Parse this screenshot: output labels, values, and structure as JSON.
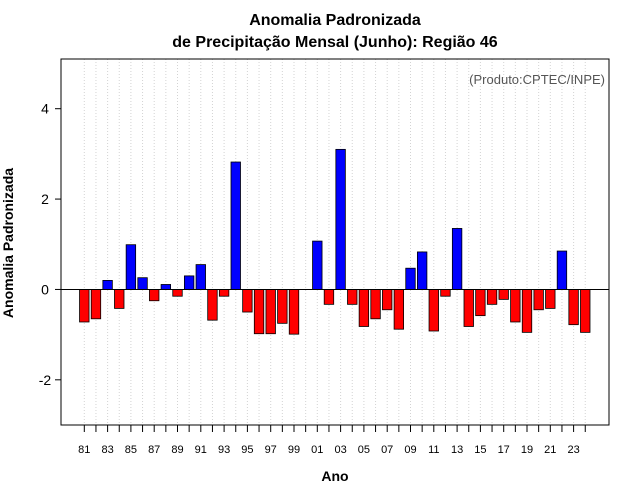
{
  "chart_data": {
    "type": "bar",
    "title_line1": "Anomalia Padronizada",
    "title_line2": "de Precipitação Mensal (Junho): Região 46",
    "credit": "(Produto:CPTEC/INPE)",
    "xlabel": "Ano",
    "ylabel": "Anomalia Padronizada",
    "ylim": [
      -3,
      5.1
    ],
    "yticks": [
      -2,
      0,
      2,
      4
    ],
    "yticks_text": [
      "-2",
      "0",
      "2",
      "4"
    ],
    "xtick_labels": [
      "81",
      "83",
      "85",
      "87",
      "89",
      "91",
      "93",
      "95",
      "97",
      "99",
      "01",
      "03",
      "05",
      "07",
      "09",
      "11",
      "13",
      "15",
      "17",
      "19",
      "21",
      "23"
    ],
    "categories": [
      "1981",
      "1982",
      "1983",
      "1984",
      "1985",
      "1986",
      "1987",
      "1988",
      "1989",
      "1990",
      "1991",
      "1992",
      "1993",
      "1994",
      "1995",
      "1996",
      "1997",
      "1998",
      "1999",
      "2000",
      "2001",
      "2002",
      "2003",
      "2004",
      "2005",
      "2006",
      "2007",
      "2008",
      "2009",
      "2010",
      "2011",
      "2012",
      "2013",
      "2014",
      "2015",
      "2016",
      "2017",
      "2018",
      "2019",
      "2020",
      "2021",
      "2022",
      "2023",
      "2024"
    ],
    "values": [
      -0.72,
      -0.65,
      0.2,
      -0.42,
      0.99,
      0.26,
      -0.25,
      0.11,
      -0.15,
      0.3,
      0.55,
      -0.68,
      -0.15,
      2.82,
      -0.5,
      -0.98,
      -0.98,
      -0.75,
      -0.99,
      0.0,
      1.07,
      -0.33,
      3.1,
      -0.33,
      -0.82,
      -0.65,
      -0.45,
      -0.88,
      0.47,
      0.83,
      -0.92,
      -0.15,
      1.35,
      -0.82,
      -0.58,
      -0.33,
      -0.22,
      -0.72,
      -0.95,
      -0.45,
      -0.42,
      0.85,
      -0.78,
      -0.95
    ],
    "positive_color": "#0000ff",
    "negative_color": "#ff0000",
    "grid": true
  }
}
